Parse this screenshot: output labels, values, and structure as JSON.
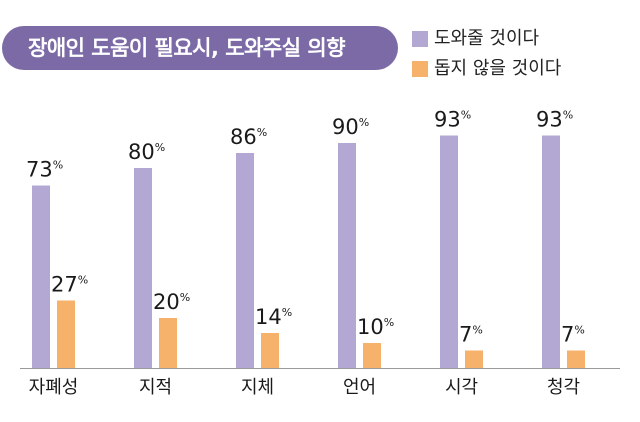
{
  "chart_data": {
    "type": "bar",
    "title": "장애인 도움이 필요시, 도와주실 의향",
    "categories": [
      "자폐성",
      "지적",
      "지체",
      "언어",
      "시각",
      "청각"
    ],
    "series": [
      {
        "name": "도와줄 것이다",
        "values": [
          73,
          80,
          86,
          90,
          93,
          93
        ],
        "color": "#b3a8d3"
      },
      {
        "name": "돕지 않을 것이다",
        "values": [
          27,
          20,
          14,
          10,
          7,
          7
        ],
        "color": "#f6b26b"
      }
    ],
    "value_suffix": "%",
    "ylim": [
      0,
      100
    ],
    "grid": false,
    "legend_position": "top-right"
  },
  "colors": {
    "title_bg": "#7b6aa6",
    "title_text": "#ffffff",
    "axis_line": "#999999"
  }
}
